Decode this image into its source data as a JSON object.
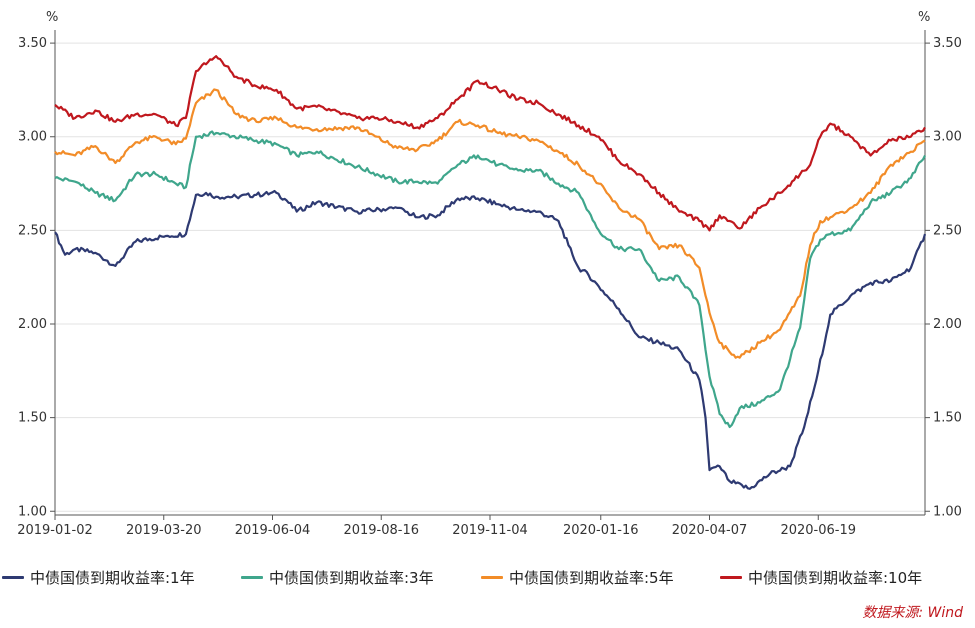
{
  "chart_data": {
    "type": "line",
    "y_unit_left": "%",
    "y_unit_right": "%",
    "y_ticks": [
      "3.50",
      "3.00",
      "2.50",
      "2.00",
      "1.50",
      "1.00"
    ],
    "ylim": [
      0.98,
      3.57
    ],
    "x_tick_labels": [
      "2019-01-02",
      "2019-03-20",
      "2019-06-04",
      "2019-08-16",
      "2019-11-04",
      "2020-01-16",
      "2020-04-07",
      "2020-06-19"
    ],
    "grid": true,
    "legend_position": "bottom",
    "x_index_range": [
      0,
      432
    ],
    "x_tick_index": [
      0,
      54,
      108,
      162,
      216,
      271,
      325,
      379
    ],
    "series": [
      {
        "name": "中债国债到期收益率:1年",
        "color": "#2e3a72",
        "x": [
          0,
          5,
          10,
          20,
          30,
          40,
          55,
          65,
          70,
          75,
          80,
          90,
          100,
          110,
          115,
          120,
          130,
          150,
          170,
          180,
          190,
          200,
          210,
          220,
          230,
          240,
          250,
          255,
          260,
          265,
          270,
          280,
          290,
          300,
          310,
          320,
          323,
          325,
          330,
          335,
          345,
          355,
          365,
          372,
          378,
          385,
          395,
          405,
          415,
          425,
          432
        ],
        "values": [
          2.49,
          2.37,
          2.4,
          2.38,
          2.31,
          2.44,
          2.47,
          2.48,
          2.69,
          2.7,
          2.68,
          2.68,
          2.69,
          2.7,
          2.66,
          2.6,
          2.65,
          2.6,
          2.62,
          2.57,
          2.58,
          2.67,
          2.67,
          2.64,
          2.61,
          2.6,
          2.55,
          2.42,
          2.3,
          2.26,
          2.2,
          2.08,
          1.93,
          1.9,
          1.86,
          1.7,
          1.5,
          1.22,
          1.24,
          1.16,
          1.12,
          1.2,
          1.24,
          1.45,
          1.7,
          2.05,
          2.15,
          2.22,
          2.23,
          2.3,
          2.48
        ]
      },
      {
        "name": "中债国债到期收益率:3年",
        "color": "#3fa68c",
        "x": [
          0,
          10,
          20,
          30,
          40,
          50,
          60,
          65,
          70,
          80,
          100,
          110,
          120,
          130,
          150,
          170,
          180,
          190,
          200,
          210,
          220,
          230,
          240,
          250,
          260,
          265,
          270,
          280,
          290,
          300,
          310,
          320,
          325,
          330,
          335,
          340,
          350,
          360,
          370,
          375,
          380,
          385,
          395,
          405,
          415,
          425,
          432
        ],
        "values": [
          2.78,
          2.76,
          2.7,
          2.66,
          2.8,
          2.8,
          2.75,
          2.73,
          3.0,
          3.02,
          2.98,
          2.96,
          2.9,
          2.92,
          2.84,
          2.76,
          2.76,
          2.75,
          2.85,
          2.9,
          2.85,
          2.82,
          2.82,
          2.75,
          2.7,
          2.6,
          2.5,
          2.4,
          2.4,
          2.23,
          2.25,
          2.1,
          1.72,
          1.52,
          1.45,
          1.55,
          1.58,
          1.65,
          1.98,
          2.35,
          2.45,
          2.48,
          2.5,
          2.65,
          2.7,
          2.78,
          2.9
        ]
      },
      {
        "name": "中债国债到期收益率:5年",
        "color": "#f28c28",
        "x": [
          0,
          10,
          20,
          30,
          40,
          50,
          60,
          65,
          70,
          80,
          90,
          100,
          110,
          120,
          130,
          150,
          170,
          180,
          190,
          200,
          210,
          220,
          230,
          240,
          250,
          260,
          270,
          280,
          290,
          300,
          310,
          320,
          325,
          330,
          335,
          340,
          350,
          360,
          370,
          375,
          380,
          385,
          395,
          405,
          415,
          425,
          432
        ],
        "values": [
          2.92,
          2.9,
          2.95,
          2.86,
          2.97,
          3.0,
          2.96,
          2.99,
          3.18,
          3.25,
          3.12,
          3.08,
          3.1,
          3.05,
          3.04,
          3.05,
          2.94,
          2.93,
          2.98,
          3.08,
          3.06,
          3.02,
          3.0,
          2.98,
          2.92,
          2.85,
          2.75,
          2.62,
          2.56,
          2.4,
          2.42,
          2.3,
          2.06,
          1.9,
          1.85,
          1.82,
          1.9,
          1.97,
          2.15,
          2.42,
          2.55,
          2.57,
          2.62,
          2.7,
          2.85,
          2.92,
          2.98
        ]
      },
      {
        "name": "中债国债到期收益率:10年",
        "color": "#c0181e",
        "x": [
          0,
          10,
          20,
          30,
          40,
          50,
          60,
          65,
          70,
          80,
          90,
          100,
          110,
          120,
          130,
          150,
          160,
          170,
          180,
          190,
          200,
          210,
          220,
          230,
          240,
          250,
          260,
          270,
          280,
          290,
          300,
          310,
          320,
          325,
          330,
          335,
          340,
          350,
          360,
          370,
          375,
          380,
          385,
          395,
          405,
          415,
          425,
          432
        ],
        "values": [
          3.17,
          3.1,
          3.14,
          3.08,
          3.12,
          3.12,
          3.06,
          3.1,
          3.35,
          3.43,
          3.32,
          3.27,
          3.25,
          3.15,
          3.16,
          3.1,
          3.1,
          3.08,
          3.05,
          3.1,
          3.2,
          3.3,
          3.25,
          3.2,
          3.18,
          3.12,
          3.06,
          3.0,
          2.87,
          2.8,
          2.7,
          2.6,
          2.55,
          2.5,
          2.58,
          2.55,
          2.51,
          2.62,
          2.7,
          2.8,
          2.85,
          3.0,
          3.07,
          3.0,
          2.9,
          2.98,
          3.0,
          3.05
        ]
      }
    ]
  },
  "source": "数据来源: Wind"
}
